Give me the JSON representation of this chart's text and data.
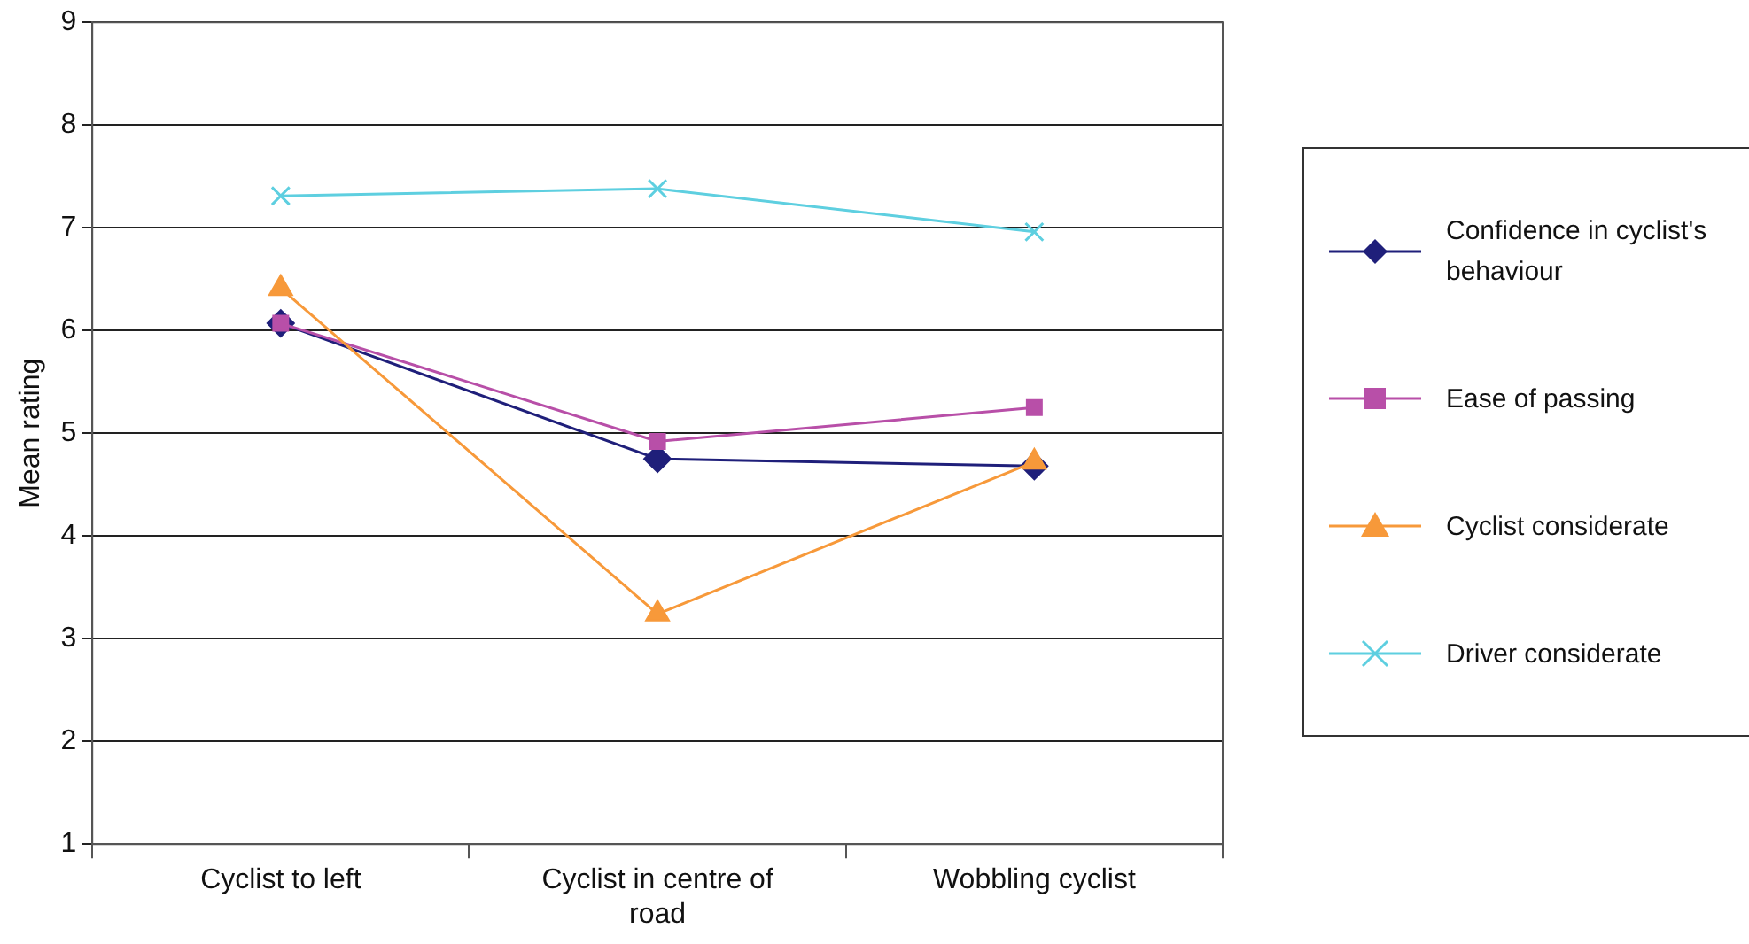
{
  "chart_data": {
    "type": "line",
    "ylabel": "Mean rating",
    "categories": [
      "Cyclist to left",
      "Cyclist in centre of road",
      "Wobbling cyclist"
    ],
    "ylim": [
      1,
      9
    ],
    "yticks": [
      1,
      2,
      3,
      4,
      5,
      6,
      7,
      8,
      9
    ],
    "grid": "y",
    "legend": "right",
    "series": [
      {
        "name": "Confidence in cyclist's behaviour",
        "color": "#1f1f7a",
        "marker": "diamond",
        "values": [
          6.07,
          4.75,
          4.68
        ]
      },
      {
        "name": "Ease of passing",
        "color": "#b84fa8",
        "marker": "square",
        "values": [
          6.07,
          4.92,
          5.25
        ]
      },
      {
        "name": "Cyclist considerate",
        "color": "#f7993a",
        "marker": "triangle",
        "values": [
          6.41,
          3.24,
          4.72
        ]
      },
      {
        "name": "Driver considerate",
        "color": "#5ecfe0",
        "marker": "cross",
        "values": [
          7.31,
          7.38,
          6.96
        ]
      }
    ]
  }
}
